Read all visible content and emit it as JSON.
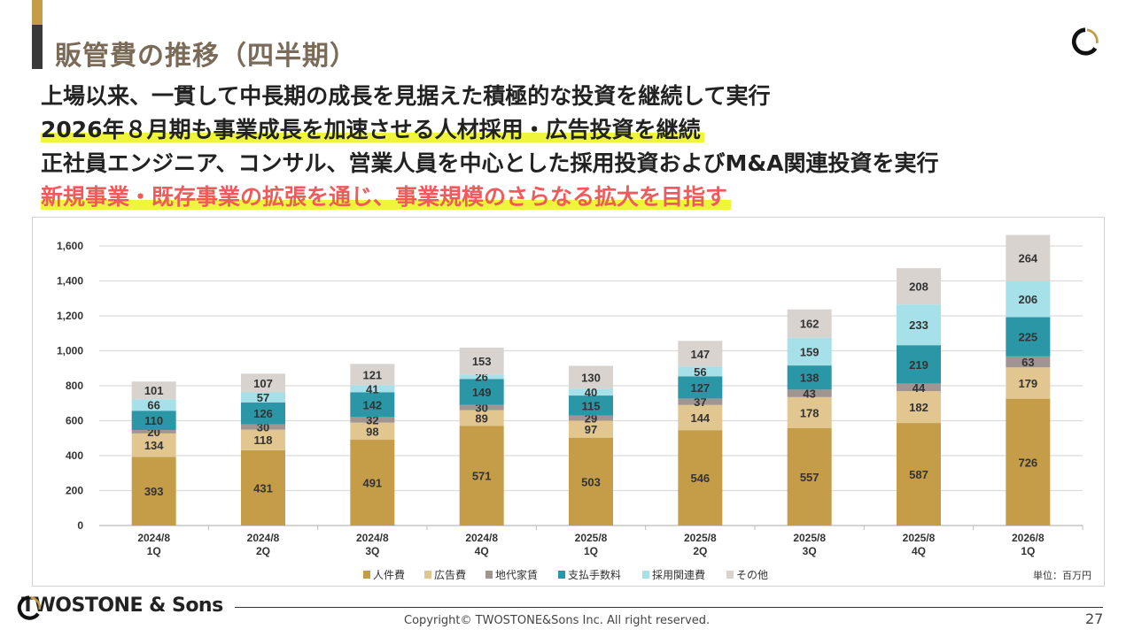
{
  "header": {
    "title": "販管費の推移（四半期）"
  },
  "body_lines": [
    "上場以来、一貫して中長期の成長を見据えた積極的な投資を継続して実行",
    "2026年８月期も事業成長を加速させる人材採用・広告投資を継続",
    "正社員エンジニア、コンサル、営業人員を中心とした採用投資およびM&A関連投資を実行",
    "新規事業・既存事業の拡張を通じ、事業規模のさらなる拡大を目指す"
  ],
  "chart_data": {
    "type": "bar",
    "stacked": true,
    "categories": [
      "2024/8\n1Q",
      "2024/8\n2Q",
      "2024/8\n3Q",
      "2024/8\n4Q",
      "2025/8\n1Q",
      "2025/8\n2Q",
      "2025/8\n3Q",
      "2025/8\n4Q",
      "2026/8\n1Q"
    ],
    "series": [
      {
        "name": "人件費",
        "color": "#C59D48",
        "values": [
          393,
          431,
          491,
          571,
          503,
          546,
          557,
          587,
          726
        ]
      },
      {
        "name": "広告費",
        "color": "#E2C690",
        "values": [
          134,
          118,
          98,
          89,
          97,
          144,
          178,
          182,
          179
        ]
      },
      {
        "name": "地代家賃",
        "color": "#A09590",
        "values": [
          20,
          30,
          32,
          30,
          29,
          37,
          43,
          44,
          63
        ]
      },
      {
        "name": "支払手数料",
        "color": "#2A96A6",
        "values": [
          110,
          126,
          142,
          149,
          115,
          127,
          138,
          219,
          225
        ]
      },
      {
        "name": "採用関連費",
        "color": "#A6E0E8",
        "values": [
          66,
          57,
          41,
          26,
          40,
          56,
          159,
          233,
          206
        ]
      },
      {
        "name": "その他",
        "color": "#D8D3CF",
        "values": [
          101,
          107,
          121,
          153,
          130,
          147,
          162,
          208,
          264
        ]
      }
    ],
    "yticks": [
      0,
      200,
      400,
      600,
      800,
      1000,
      1200,
      1400,
      1600
    ],
    "ytick_labels": [
      "0",
      "200",
      "400",
      "600",
      "800",
      "1,000",
      "1,200",
      "1,400",
      "1,600"
    ],
    "ylim": [
      0,
      1600
    ],
    "grid": true,
    "legend_position": "bottom",
    "unit_note": "単位：百万円"
  },
  "footer": {
    "brand": "TWOSTONE & Sons",
    "copyright": "Copyright© TWOSTONE&Sons Inc. All right reserved.",
    "page": "27"
  }
}
